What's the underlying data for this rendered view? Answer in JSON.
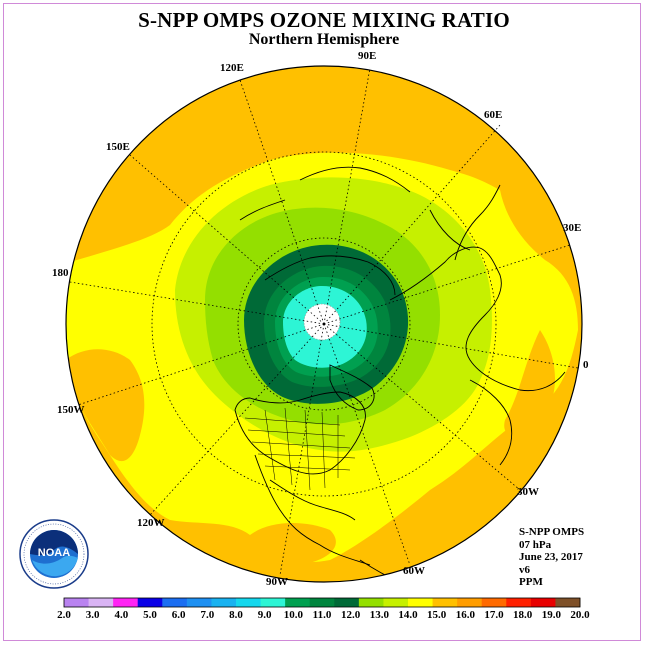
{
  "header": {
    "title": "S-NPP OMPS OZONE MIXING RATIO",
    "subtitle": "Northern Hemisphere"
  },
  "map": {
    "projection": "north-polar-stereographic",
    "longitude_labels": [
      "0",
      "30E",
      "60E",
      "90E",
      "120E",
      "150E",
      "180",
      "150W",
      "120W",
      "90W",
      "60W",
      "30W"
    ]
  },
  "info": {
    "instrument": "S-NPP OMPS",
    "level": "07 hPa",
    "date": "June 23, 2017",
    "version": "v6",
    "units": "PPM"
  },
  "colorbar": {
    "labels": [
      "2.0",
      "3.0",
      "4.0",
      "5.0",
      "6.0",
      "7.0",
      "8.0",
      "9.0",
      "10.0",
      "11.0",
      "12.0",
      "13.0",
      "14.0",
      "15.0",
      "16.0",
      "17.0",
      "18.0",
      "19.0",
      "20.0"
    ],
    "colors": [
      "#b983f0",
      "#d9b4f4",
      "#ff24f4",
      "#0a00e6",
      "#1b6ef2",
      "#1e90f2",
      "#19b2f0",
      "#15d8ee",
      "#2df5d5",
      "#00a050",
      "#00853e",
      "#006a37",
      "#94df00",
      "#c6f000",
      "#ffff00",
      "#ffc000",
      "#ff9d00",
      "#ff6a00",
      "#ff2000",
      "#e80000",
      "#7e5028"
    ]
  },
  "logo": {
    "text": "NOAA",
    "icon": "noaa-logo-icon"
  }
}
